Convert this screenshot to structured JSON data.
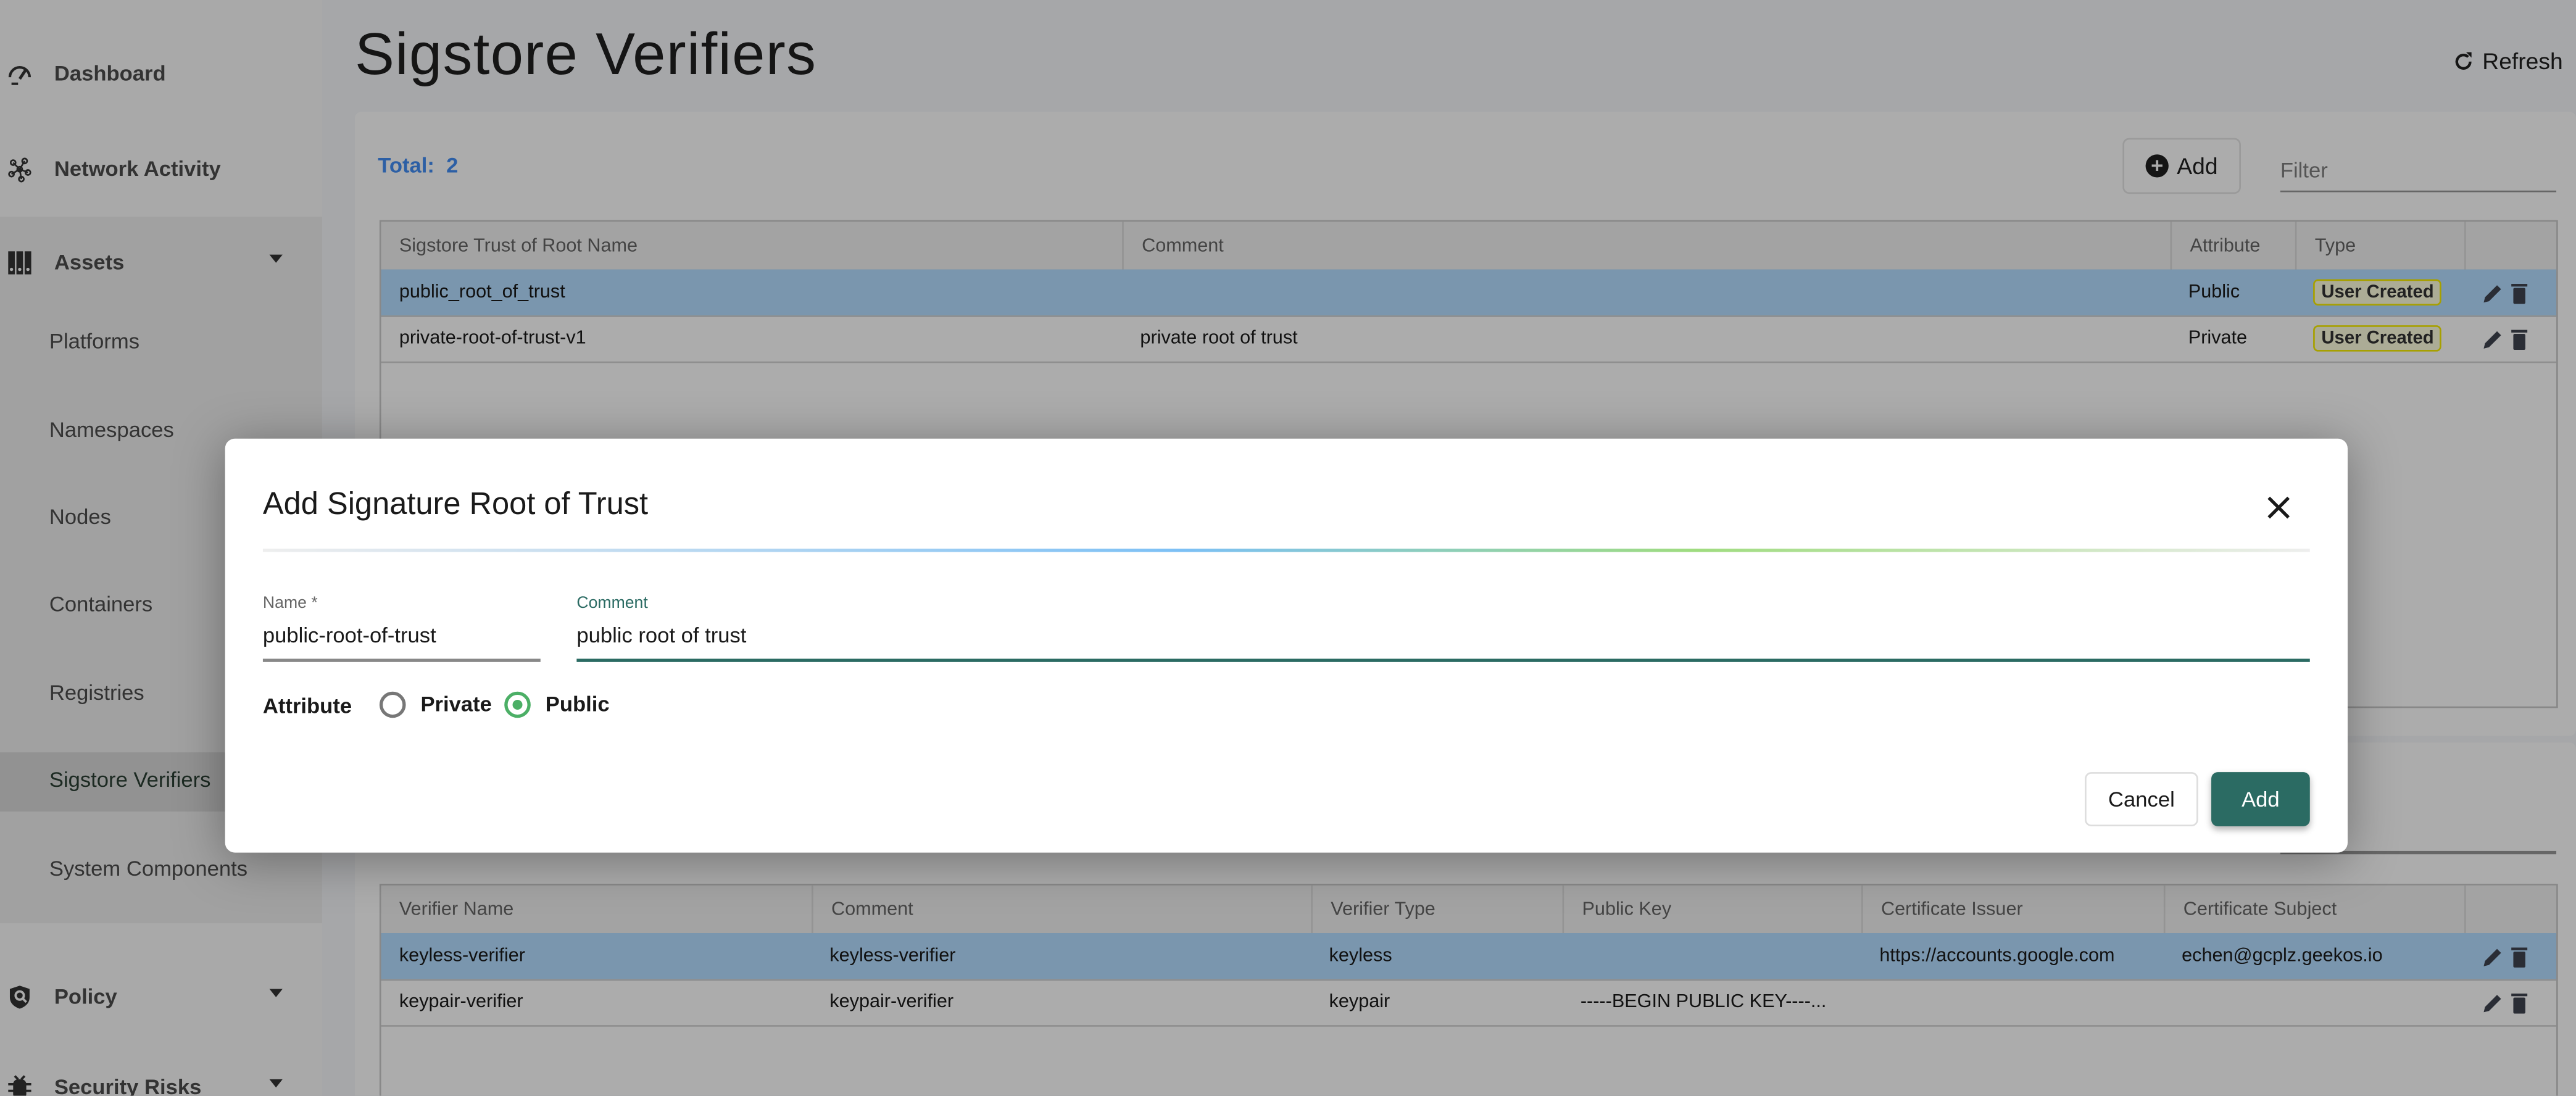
{
  "sidebar": {
    "items": [
      {
        "label": "Dashboard",
        "icon": "gauge-icon"
      },
      {
        "label": "Network Activity",
        "icon": "network-icon"
      },
      {
        "label": "Assets",
        "icon": "assets-icon",
        "expanded": true
      },
      {
        "label": "Policy",
        "icon": "shield-search-icon"
      },
      {
        "label": "Security Risks",
        "icon": "bug-icon"
      }
    ],
    "asset_children": [
      "Platforms",
      "Namespaces",
      "Nodes",
      "Containers",
      "Registries",
      "Sigstore Verifiers",
      "System Components"
    ],
    "selected": "Sigstore Verifiers"
  },
  "header": {
    "title": "Sigstore Verifiers",
    "refresh_label": "Refresh"
  },
  "roots_panel": {
    "total_label": "Total:",
    "total_value": "2",
    "add_label": "Add",
    "filter_placeholder": "Filter",
    "columns": [
      "Sigstore Trust of Root Name",
      "Comment",
      "Attribute",
      "Type"
    ],
    "rows": [
      {
        "name": "public_root_of_trust",
        "comment": "",
        "attribute": "Public",
        "type": "User Created",
        "selected": true
      },
      {
        "name": "private-root-of-trust-v1",
        "comment": "private root of trust",
        "attribute": "Private",
        "type": "User Created"
      }
    ]
  },
  "verifiers_panel": {
    "columns": [
      "Verifier Name",
      "Comment",
      "Verifier Type",
      "Public Key",
      "Certificate Issuer",
      "Certificate Subject"
    ],
    "rows": [
      {
        "name": "keyless-verifier",
        "comment": "keyless-verifier",
        "type": "keyless",
        "public_key": "",
        "issuer": "https://accounts.google.com",
        "subject": "echen@gcplz.geekos.io",
        "selected": true
      },
      {
        "name": "keypair-verifier",
        "comment": "keypair-verifier",
        "type": "keypair",
        "public_key": "-----BEGIN PUBLIC KEY----...",
        "issuer": "",
        "subject": ""
      }
    ]
  },
  "dialog": {
    "title": "Add Signature Root of Trust",
    "name_label": "Name *",
    "name_value": "public-root-of-trust",
    "comment_label": "Comment",
    "comment_value": "public root of trust",
    "attribute_label": "Attribute",
    "options": [
      "Private",
      "Public"
    ],
    "selected_option": "Public",
    "cancel_label": "Cancel",
    "add_label": "Add"
  },
  "colors": {
    "accent": "#2b6b63",
    "total": "#2c5fa5",
    "row_highlight": "#7a96ae",
    "radio_on": "#4caf66"
  }
}
